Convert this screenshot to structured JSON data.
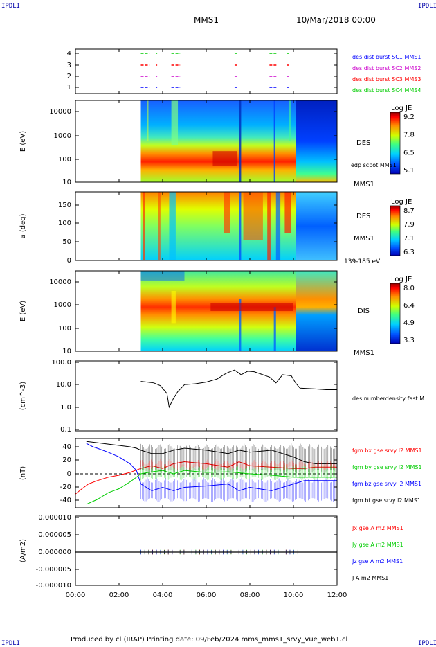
{
  "corner_labels": {
    "top_left": "IPDLI",
    "top_right": "IPDLI",
    "bottom_left": "IPDLI",
    "bottom_right": "IPDLI"
  },
  "header": {
    "spacecraft": "MMS1",
    "date": "10/Mar/2018 00:00"
  },
  "footer": {
    "text": "Produced by cl (IRAP)   Printing date: 09/Feb/2024   mms_mms1_srvy_vue_web1.cl"
  },
  "chart_data": [
    {
      "id": "burst_availability",
      "type": "scatter",
      "y_ticks": [
        "4",
        "3",
        "2",
        "1"
      ],
      "series": [
        {
          "name": "des dist burst SC1 MMS1",
          "color": "#0000ff",
          "y": 1,
          "x_intervals": [
            [
              3.0,
              3.4
            ],
            [
              3.7,
              3.75
            ],
            [
              4.4,
              4.8
            ],
            [
              7.3,
              7.4
            ],
            [
              8.9,
              9.3
            ],
            [
              9.7,
              9.8
            ]
          ]
        },
        {
          "name": "des dist burst SC2 MMS2",
          "color": "#cc00cc",
          "y": 2,
          "x_intervals": [
            [
              3.0,
              3.4
            ],
            [
              3.7,
              3.75
            ],
            [
              4.4,
              4.8
            ],
            [
              7.3,
              7.4
            ],
            [
              8.9,
              9.3
            ],
            [
              9.7,
              9.8
            ]
          ]
        },
        {
          "name": "des dist burst SC3 MMS3",
          "color": "#ff0000",
          "y": 3,
          "x_intervals": [
            [
              3.0,
              3.4
            ],
            [
              3.7,
              3.75
            ],
            [
              4.4,
              4.8
            ],
            [
              7.3,
              7.4
            ],
            [
              8.9,
              9.3
            ],
            [
              9.7,
              9.8
            ]
          ]
        },
        {
          "name": "des dist burst SC4 MMS4",
          "color": "#00cc00",
          "y": 4,
          "x_intervals": [
            [
              3.0,
              3.4
            ],
            [
              3.7,
              3.75
            ],
            [
              4.4,
              4.8
            ],
            [
              7.3,
              7.4
            ],
            [
              8.9,
              9.3
            ],
            [
              9.7,
              9.8
            ]
          ]
        }
      ]
    },
    {
      "id": "des_energy",
      "type": "heatmap",
      "ylabel": "E (eV)",
      "y_ticks": [
        "10000",
        "1000",
        "100",
        "10"
      ],
      "data_start_hour": 3.0,
      "labels": [
        "DES",
        "edp scpot MMS1",
        "MMS1"
      ],
      "colorbar": {
        "title": "Log JE",
        "ticks": [
          "9.2",
          "7.8",
          "6.5",
          "5.1"
        ]
      }
    },
    {
      "id": "des_pitch",
      "type": "heatmap",
      "ylabel": "a (deg)",
      "y_ticks": [
        "150",
        "100",
        "50",
        "0"
      ],
      "data_start_hour": 3.0,
      "labels": [
        "DES",
        "MMS1",
        "139-185 eV"
      ],
      "colorbar": {
        "title": "Log JE",
        "ticks": [
          "8.7",
          "7.9",
          "7.1",
          "6.3"
        ]
      }
    },
    {
      "id": "dis_energy",
      "type": "heatmap",
      "ylabel": "E (eV)",
      "y_ticks": [
        "10000",
        "1000",
        "100",
        "10"
      ],
      "data_start_hour": 3.0,
      "labels": [
        "DIS",
        "MMS1"
      ],
      "colorbar": {
        "title": "Log JE",
        "ticks": [
          "8.0",
          "6.4",
          "4.9",
          "3.3"
        ]
      }
    },
    {
      "id": "density",
      "type": "line",
      "ylabel": "(cm^-3)",
      "y_ticks": [
        "100.0",
        "10.0",
        "1.0",
        "0.1"
      ],
      "ylim": [
        0.1,
        100
      ],
      "log_y": true,
      "series": [
        {
          "name": "des numberdensity fast M",
          "color": "#000000",
          "x": [
            3.0,
            3.3,
            3.6,
            3.9,
            4.2,
            4.3,
            4.5,
            4.7,
            5.0,
            5.5,
            6.0,
            6.5,
            6.8,
            7.0,
            7.3,
            7.6,
            7.9,
            8.2,
            8.5,
            8.9,
            9.2,
            9.5,
            9.9,
            10.1,
            10.3,
            11.0,
            11.5,
            12.0
          ],
          "y": [
            14,
            13,
            12,
            9,
            4,
            1.0,
            2.5,
            5,
            10,
            11,
            13,
            18,
            28,
            35,
            45,
            28,
            40,
            38,
            30,
            22,
            12,
            28,
            25,
            12,
            7,
            6.5,
            6,
            6
          ]
        }
      ]
    },
    {
      "id": "magnetic_field",
      "type": "line",
      "ylabel": "(nT)",
      "y_ticks": [
        "40",
        "20",
        "0",
        "-20",
        "-40"
      ],
      "ylim": [
        -50,
        50
      ],
      "series": [
        {
          "name": "fgm bx gse srvy l2 MMS1",
          "color": "#ff0000",
          "x": [
            0.0,
            0.3,
            0.6,
            1.0,
            1.5,
            2.0,
            2.5,
            3.0,
            3.5,
            4.0,
            4.5,
            5.0,
            6.0,
            7.0,
            7.5,
            8.0,
            9.0,
            10.0,
            10.5,
            11.0,
            12.0
          ],
          "y": [
            -30,
            -22,
            -15,
            -10,
            -5,
            -2,
            2,
            8,
            12,
            8,
            15,
            18,
            15,
            10,
            18,
            12,
            10,
            8,
            8,
            10,
            10
          ]
        },
        {
          "name": "fgm by gse srvy l2 MMS1",
          "color": "#00cc00",
          "x": [
            0.5,
            1.0,
            1.5,
            2.0,
            2.5,
            2.8,
            3.0,
            3.5,
            4.0,
            4.5,
            5.0,
            6.0,
            7.0,
            8.0,
            9.0,
            10.0,
            10.5,
            11.0,
            12.0
          ],
          "y": [
            -45,
            -38,
            -28,
            -22,
            -12,
            -5,
            0,
            3,
            5,
            0,
            5,
            2,
            3,
            0,
            -2,
            -5,
            -5,
            -5,
            -5
          ]
        },
        {
          "name": "fgm bz gse srvy l2 MMS1",
          "color": "#0000ff",
          "x": [
            0.5,
            0.8,
            1.0,
            1.5,
            2.0,
            2.5,
            2.8,
            3.0,
            3.5,
            4.0,
            4.5,
            5.0,
            6.0,
            7.0,
            7.5,
            8.0,
            9.0,
            10.0,
            10.5,
            11.0,
            12.0
          ],
          "y": [
            45,
            40,
            38,
            32,
            25,
            15,
            5,
            -15,
            -25,
            -20,
            -25,
            -20,
            -18,
            -15,
            -25,
            -20,
            -25,
            -15,
            -10,
            -10,
            -10
          ]
        },
        {
          "name": "fgm bt gse srvy l2 MMS1",
          "color": "#000000",
          "x": [
            0.5,
            1.0,
            1.5,
            2.0,
            2.5,
            2.8,
            3.0,
            3.5,
            4.0,
            4.5,
            5.0,
            6.0,
            7.0,
            7.5,
            8.0,
            9.0,
            10.0,
            10.5,
            11.0,
            12.0
          ],
          "y": [
            48,
            46,
            44,
            42,
            40,
            38,
            35,
            30,
            30,
            35,
            38,
            35,
            30,
            35,
            32,
            35,
            25,
            18,
            15,
            15
          ]
        }
      ]
    },
    {
      "id": "current_density",
      "type": "line",
      "ylabel": "(A/m2)",
      "y_ticks": [
        "0.000010",
        "0.000005",
        "0.000000",
        "-0.000005",
        "-0.000010"
      ],
      "ylim": [
        -1e-05,
        1e-05
      ],
      "series": [
        {
          "name": "Jx gse A m2 MMS1",
          "color": "#ff0000"
        },
        {
          "name": "Jy gse A m2 MMS1",
          "color": "#00cc00"
        },
        {
          "name": "Jz gse A m2 MMS1",
          "color": "#0000ff"
        },
        {
          "name": "J A m2 MMS1",
          "color": "#000000"
        }
      ]
    }
  ],
  "x_axis": {
    "ticks": [
      "00:00",
      "02:00",
      "04:00",
      "06:00",
      "08:00",
      "10:00",
      "12:00"
    ],
    "range_hours": [
      0,
      12
    ]
  }
}
